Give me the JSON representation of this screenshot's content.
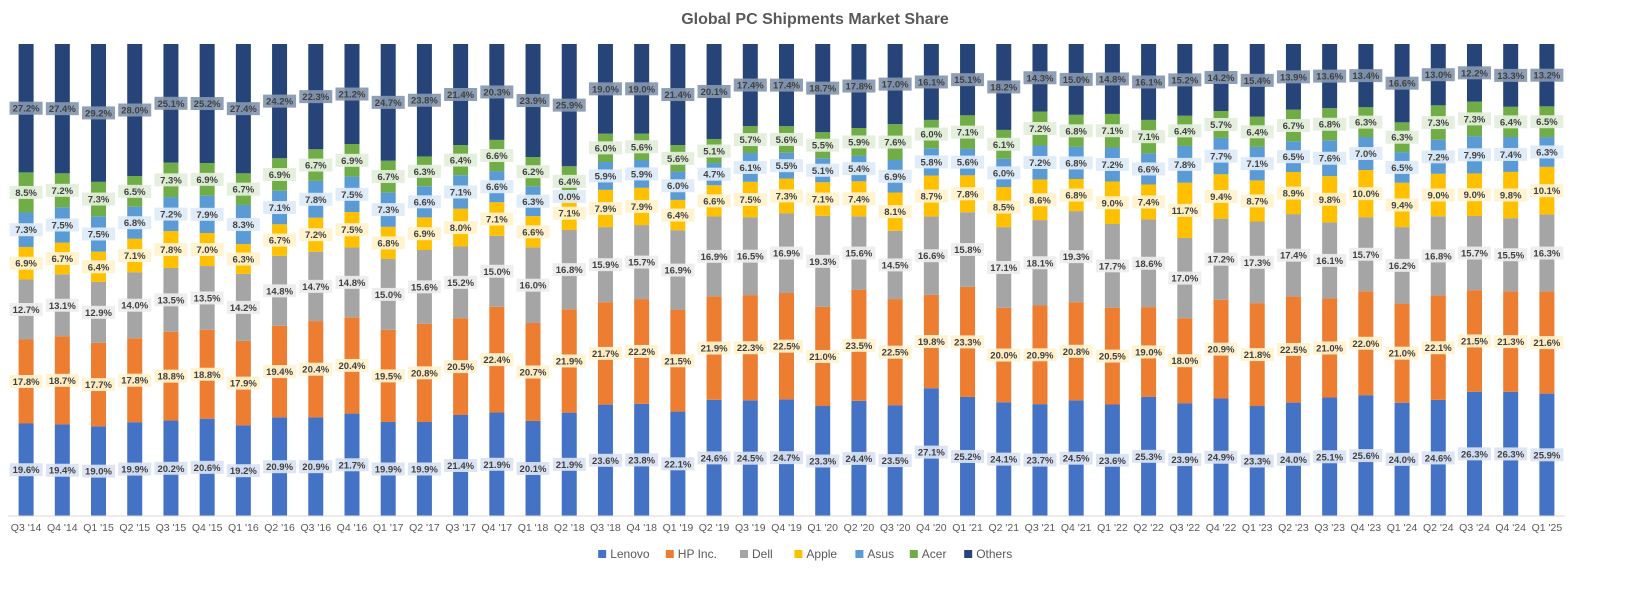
{
  "chart_data": {
    "type": "bar",
    "stacked": true,
    "percent_stacked": true,
    "title": "Global PC Shipments Market Share",
    "xlabel": "",
    "ylabel": "",
    "ylim": [
      0,
      100
    ],
    "grid": false,
    "legend_position": "bottom",
    "categories": [
      "Q3 '14",
      "Q4 '14",
      "Q1 '15",
      "Q2 '15",
      "Q3 '15",
      "Q4 '15",
      "Q1 '16",
      "Q2 '16",
      "Q3 '16",
      "Q4 '16",
      "Q1 '17",
      "Q2 '17",
      "Q3 '17",
      "Q4 '17",
      "Q1 '18",
      "Q2 '18",
      "Q3 '18",
      "Q4 '18",
      "Q1 '19",
      "Q2 '19",
      "Q3 '19",
      "Q4 '19",
      "Q1 '20",
      "Q2 '20",
      "Q3 '20",
      "Q4 '20",
      "Q1 '21",
      "Q2 '21",
      "Q3 '21",
      "Q4 '21",
      "Q1 '22",
      "Q2 '22",
      "Q3 '22",
      "Q4 '22",
      "Q1 '23",
      "Q2 '23",
      "Q3 '23",
      "Q4 '23",
      "Q1 '24",
      "Q2 '24",
      "Q3 '24",
      "Q4 '24",
      "Q1 '25"
    ],
    "series": [
      {
        "name": "Lenovo",
        "color": "#4472C4",
        "label_bg": "#DAE3F3",
        "values": [
          19.6,
          19.4,
          19.0,
          19.9,
          20.2,
          20.6,
          19.2,
          20.9,
          20.9,
          21.7,
          19.9,
          19.9,
          21.4,
          21.9,
          20.1,
          21.9,
          23.6,
          23.8,
          22.1,
          24.6,
          24.5,
          24.7,
          23.3,
          24.4,
          23.5,
          27.1,
          25.2,
          24.1,
          23.7,
          24.5,
          23.6,
          25.3,
          23.9,
          24.9,
          23.3,
          24.0,
          25.1,
          25.6,
          24.0,
          24.6,
          26.3,
          26.3,
          25.9
        ]
      },
      {
        "name": "HP Inc.",
        "color": "#ED7D31",
        "label_bg": "#FFF2CC",
        "values": [
          17.8,
          18.7,
          17.7,
          17.8,
          18.8,
          18.8,
          17.9,
          19.4,
          20.4,
          20.4,
          19.5,
          20.8,
          20.5,
          22.4,
          20.7,
          21.9,
          21.7,
          22.2,
          21.5,
          21.9,
          22.3,
          22.5,
          21.0,
          23.5,
          22.5,
          19.8,
          23.3,
          20.0,
          20.9,
          20.8,
          20.5,
          19.0,
          18.0,
          20.9,
          21.8,
          22.5,
          21.0,
          22.0,
          21.0,
          22.1,
          21.5,
          21.3,
          21.6
        ]
      },
      {
        "name": "Dell",
        "color": "#A5A5A5",
        "label_bg": "#EDEDED",
        "values": [
          12.7,
          13.1,
          12.9,
          14.0,
          13.5,
          13.5,
          14.2,
          14.8,
          14.7,
          14.8,
          15.0,
          15.6,
          15.2,
          15.0,
          16.0,
          16.8,
          15.9,
          15.7,
          16.9,
          16.9,
          16.5,
          16.9,
          19.3,
          15.6,
          14.5,
          16.6,
          15.8,
          17.1,
          18.1,
          19.3,
          17.7,
          18.6,
          17.0,
          17.2,
          17.3,
          17.4,
          16.1,
          15.7,
          16.2,
          16.8,
          15.7,
          15.5,
          16.3
        ]
      },
      {
        "name": "Apple",
        "color": "#FFC000",
        "label_bg": "#FFF2CC",
        "values": [
          6.9,
          6.7,
          6.4,
          7.1,
          7.8,
          7.0,
          6.3,
          6.7,
          7.2,
          7.5,
          6.8,
          6.9,
          8.0,
          7.1,
          6.6,
          7.1,
          7.9,
          7.9,
          6.4,
          6.6,
          7.5,
          7.3,
          7.1,
          7.4,
          8.1,
          8.7,
          7.8,
          8.5,
          8.6,
          6.8,
          9.0,
          7.4,
          11.7,
          9.4,
          8.7,
          8.9,
          9.8,
          10.0,
          9.4,
          9.0,
          9.0,
          9.8,
          10.1
        ]
      },
      {
        "name": "Asus",
        "color": "#5B9BD5",
        "label_bg": "#DDEBF7",
        "values": [
          7.3,
          7.5,
          7.5,
          6.8,
          7.2,
          7.9,
          8.3,
          7.1,
          7.8,
          7.5,
          7.3,
          6.6,
          7.1,
          6.6,
          6.3,
          0.0,
          5.9,
          5.9,
          6.0,
          4.7,
          6.1,
          5.5,
          5.1,
          5.4,
          6.9,
          5.8,
          5.6,
          6.0,
          7.2,
          6.8,
          7.2,
          6.6,
          7.8,
          7.7,
          7.1,
          6.5,
          7.6,
          7.0,
          6.5,
          7.2,
          7.9,
          7.4,
          6.3
        ]
      },
      {
        "name": "Acer",
        "color": "#70AD47",
        "label_bg": "#E2EFDA",
        "values": [
          8.5,
          7.2,
          7.3,
          6.5,
          7.3,
          6.9,
          6.7,
          6.9,
          6.7,
          6.9,
          6.7,
          6.3,
          6.4,
          6.6,
          6.2,
          6.4,
          6.0,
          5.6,
          5.6,
          5.1,
          5.7,
          5.6,
          5.5,
          5.9,
          7.6,
          6.0,
          7.1,
          6.1,
          7.2,
          6.8,
          7.1,
          7.1,
          6.4,
          5.7,
          6.4,
          6.7,
          6.8,
          6.3,
          6.3,
          7.3,
          7.3,
          6.4,
          6.5
        ]
      },
      {
        "name": "Others",
        "color": "#264478",
        "label_bg": "#8497B0",
        "values": [
          27.2,
          27.4,
          29.2,
          28.0,
          25.1,
          25.2,
          27.4,
          24.2,
          22.3,
          21.2,
          24.7,
          23.8,
          21.4,
          20.3,
          23.9,
          25.9,
          19.0,
          19.0,
          21.4,
          20.1,
          17.4,
          17.4,
          18.7,
          17.8,
          17.0,
          16.1,
          15.1,
          18.2,
          14.3,
          15.0,
          14.8,
          16.1,
          15.2,
          14.2,
          15.4,
          13.9,
          13.6,
          13.4,
          16.6,
          13.0,
          12.2,
          13.3,
          13.2
        ]
      }
    ]
  }
}
